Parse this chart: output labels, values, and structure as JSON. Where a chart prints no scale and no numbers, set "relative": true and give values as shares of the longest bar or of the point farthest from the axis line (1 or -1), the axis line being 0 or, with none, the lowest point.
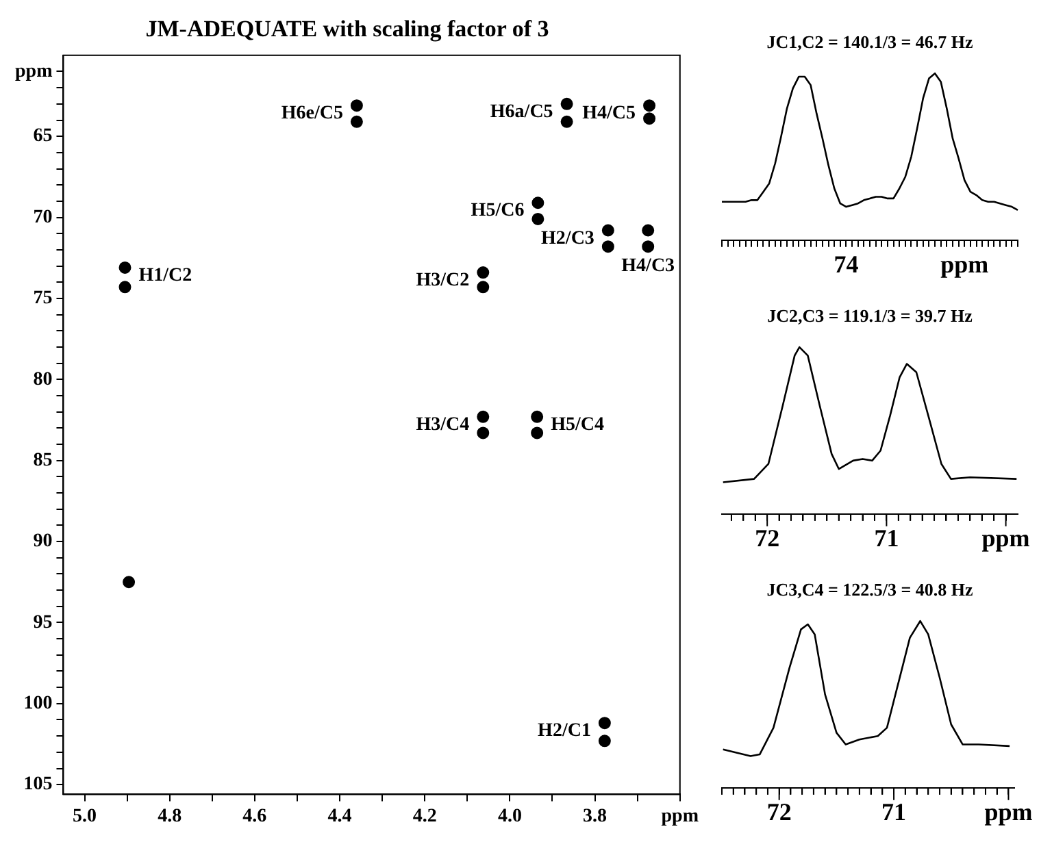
{
  "chart_data": [
    {
      "type": "scatter",
      "title": "JM-ADEQUATE with scaling factor of 3",
      "x": [
        4.905,
        4.905,
        4.36,
        4.36,
        3.866,
        3.866,
        3.672,
        3.672,
        3.934,
        3.934,
        3.769,
        3.769,
        3.675,
        3.675,
        4.063,
        4.063,
        4.063,
        4.063,
        3.936,
        3.936,
        3.777,
        3.777,
        4.896
      ],
      "values": [
        73.1,
        74.3,
        63.1,
        64.1,
        63.0,
        64.1,
        63.1,
        63.9,
        69.1,
        70.1,
        70.8,
        71.8,
        70.8,
        71.8,
        73.4,
        74.3,
        82.3,
        83.3,
        82.3,
        83.3,
        101.2,
        102.3,
        92.5
      ],
      "color": "#000000",
      "marker": "circle",
      "xlim": [
        5.05,
        3.6
      ],
      "xticks": [
        {
          "value": 5,
          "label": "5.0"
        },
        {
          "value": 4.9,
          "label": null
        },
        {
          "value": 4.8,
          "label": "4.8"
        },
        {
          "value": 4.7,
          "label": null
        },
        {
          "value": 4.6,
          "label": "4.6"
        },
        {
          "value": 4.5,
          "label": null
        },
        {
          "value": 4.4,
          "label": "4.4"
        },
        {
          "value": 4.3,
          "label": null
        },
        {
          "value": 4.2,
          "label": "4.2"
        },
        {
          "value": 4.1,
          "label": null
        },
        {
          "value": 4,
          "label": "4.0"
        },
        {
          "value": 3.9,
          "label": null
        },
        {
          "value": 3.8,
          "label": "3.8"
        },
        {
          "value": 3.7,
          "label": null
        },
        {
          "value": 3.6,
          "label": "ppm"
        }
      ],
      "ylim": [
        105.6,
        60
      ],
      "yticks": [
        {
          "value": 61,
          "label": "ppm"
        },
        {
          "value": 62,
          "label": null
        },
        {
          "value": 63,
          "label": null
        },
        {
          "value": 64,
          "label": null
        },
        65,
        {
          "value": 66,
          "label": null
        },
        {
          "value": 67,
          "label": null
        },
        {
          "value": 68,
          "label": null
        },
        {
          "value": 69,
          "label": null
        },
        70,
        {
          "value": 71,
          "label": null
        },
        {
          "value": 72,
          "label": null
        },
        {
          "value": 73,
          "label": null
        },
        {
          "value": 74,
          "label": null
        },
        75,
        {
          "value": 76,
          "label": null
        },
        {
          "value": 77,
          "label": null
        },
        {
          "value": 78,
          "label": null
        },
        {
          "value": 79,
          "label": null
        },
        80,
        {
          "value": 81,
          "label": null
        },
        {
          "value": 82,
          "label": null
        },
        {
          "value": 83,
          "label": null
        },
        {
          "value": 84,
          "label": null
        },
        85,
        {
          "value": 86,
          "label": null
        },
        {
          "value": 87,
          "label": null
        },
        {
          "value": 88,
          "label": null
        },
        {
          "value": 89,
          "label": null
        },
        90,
        {
          "value": 91,
          "label": null
        },
        {
          "value": 92,
          "label": null
        },
        {
          "value": 93,
          "label": null
        },
        {
          "value": 94,
          "label": null
        },
        95,
        {
          "value": 96,
          "label": null
        },
        {
          "value": 97,
          "label": null
        },
        {
          "value": 98,
          "label": null
        },
        {
          "value": 99,
          "label": null
        },
        100,
        {
          "value": 101,
          "label": null
        },
        {
          "value": 102,
          "label": null
        },
        {
          "value": 103,
          "label": null
        },
        {
          "value": 104,
          "label": null
        },
        105
      ],
      "annotations": [
        {
          "text": "H1/C2",
          "x": 4.905,
          "y": 73.1
        },
        {
          "text": "H6e/C5",
          "x": 4.36,
          "y": 63.1
        },
        {
          "text": "H3/C2",
          "x": 4.063,
          "y": 73.4
        },
        {
          "text": "H3/C4",
          "x": 4.063,
          "y": 82.3
        },
        {
          "text": "H6a/C5",
          "x": 3.866,
          "y": 63.0
        },
        {
          "text": "H4/C5",
          "x": 3.672,
          "y": 63.1
        },
        {
          "text": "H2/C3",
          "x": 3.769,
          "y": 70.8
        },
        {
          "text": "H5/C6",
          "x": 3.934,
          "y": 69.1
        },
        {
          "text": "H4/C3",
          "x": 3.675,
          "y": 70.8
        },
        {
          "text": "H5/C4",
          "x": 3.936,
          "y": 82.3
        },
        {
          "text": "H2/C1",
          "x": 3.777,
          "y": 101.2
        }
      ]
    },
    {
      "type": "line",
      "title": "JC1,C2 = 140.1/3 = 46.7 Hz",
      "relative": true,
      "color": "#000000",
      "marker": "none",
      "categories": [
        null,
        null,
        null,
        null,
        null,
        null,
        null,
        null,
        null,
        null,
        null,
        null,
        null,
        null,
        null,
        null,
        null,
        null,
        null,
        null,
        null,
        "74",
        null,
        null,
        null,
        null,
        null,
        null,
        null,
        null,
        null,
        null,
        null,
        null,
        null,
        null,
        null,
        null,
        null,
        null,
        null,
        "ppm",
        null,
        null,
        null,
        null,
        null,
        null,
        null,
        null,
        null
      ],
      "values": [
        0.23,
        0.23,
        0.23,
        0.23,
        0.23,
        0.24,
        0.24,
        0.29,
        0.34,
        0.46,
        0.62,
        0.79,
        0.91,
        0.98,
        0.98,
        0.93,
        0.76,
        0.61,
        0.45,
        0.31,
        0.22,
        0.2,
        0.21,
        0.22,
        0.24,
        0.25,
        0.26,
        0.26,
        0.25,
        0.25,
        0.31,
        0.38,
        0.5,
        0.67,
        0.85,
        0.97,
        1.0,
        0.95,
        0.79,
        0.61,
        0.49,
        0.36,
        0.29,
        0.27,
        0.24,
        0.23,
        0.23,
        0.22,
        0.21,
        0.2,
        0.18
      ]
    },
    {
      "type": "line",
      "title": "JC2,C3 = 119.1/3 = 39.7 Hz",
      "relative": true,
      "color": "#000000",
      "marker": "none",
      "x": [
        72.37,
        72.11,
        71.99,
        71.87,
        71.77,
        71.73,
        71.66,
        71.56,
        71.46,
        71.4,
        71.28,
        71.2,
        71.12,
        71.05,
        70.97,
        70.89,
        70.83,
        70.75,
        70.65,
        70.54,
        70.46,
        70.3,
        69.91
      ],
      "values": [
        0.19,
        0.21,
        0.3,
        0.65,
        0.95,
        1.0,
        0.95,
        0.65,
        0.36,
        0.27,
        0.32,
        0.33,
        0.32,
        0.38,
        0.59,
        0.82,
        0.9,
        0.85,
        0.59,
        0.3,
        0.21,
        0.22,
        0.21
      ],
      "xlim": [
        72.38,
        69.9
      ],
      "xticks": [
        {
          "value": 72.3,
          "label": null
        },
        {
          "value": 72.2,
          "label": null
        },
        {
          "value": 72.1,
          "label": null
        },
        {
          "value": 72,
          "label": "72"
        },
        {
          "value": 71.9,
          "label": null
        },
        {
          "value": 71.8,
          "label": null
        },
        {
          "value": 71.7,
          "label": null
        },
        {
          "value": 71.6,
          "label": null
        },
        {
          "value": 71.5,
          "label": null
        },
        {
          "value": 71.4,
          "label": null
        },
        {
          "value": 71.3,
          "label": null
        },
        {
          "value": 71.2,
          "label": null
        },
        {
          "value": 71.1,
          "label": null
        },
        {
          "value": 71,
          "label": "71"
        },
        {
          "value": 70.9,
          "label": null
        },
        {
          "value": 70.8,
          "label": null
        },
        {
          "value": 70.7,
          "label": null
        },
        {
          "value": 70.6,
          "label": null
        },
        {
          "value": 70.5,
          "label": null
        },
        {
          "value": 70.4,
          "label": null
        },
        {
          "value": 70.3,
          "label": null
        },
        {
          "value": 70.2,
          "label": null
        },
        {
          "value": 70.1,
          "label": null
        },
        {
          "value": 70,
          "label": "ppm"
        }
      ]
    },
    {
      "type": "line",
      "title": "JC3,C4 = 122.5/3 = 40.8 Hz",
      "relative": true,
      "color": "#000000",
      "marker": "none",
      "x": [
        72.49,
        72.25,
        72.17,
        72.05,
        71.91,
        71.81,
        71.75,
        71.69,
        71.6,
        71.5,
        71.42,
        71.3,
        71.14,
        71.06,
        70.96,
        70.86,
        70.77,
        70.7,
        70.6,
        70.5,
        70.4,
        70.26,
        69.99
      ],
      "values": [
        0.23,
        0.19,
        0.2,
        0.36,
        0.72,
        0.95,
        0.98,
        0.92,
        0.56,
        0.33,
        0.26,
        0.29,
        0.31,
        0.36,
        0.63,
        0.9,
        1.0,
        0.92,
        0.66,
        0.38,
        0.26,
        0.26,
        0.25
      ],
      "xlim": [
        72.5,
        69.95
      ],
      "xticks": [
        {
          "value": 72.5,
          "label": null
        },
        {
          "value": 72.4,
          "label": null
        },
        {
          "value": 72.3,
          "label": null
        },
        {
          "value": 72.2,
          "label": null
        },
        {
          "value": 72.1,
          "label": null
        },
        {
          "value": 72,
          "label": "72"
        },
        {
          "value": 71.9,
          "label": null
        },
        {
          "value": 71.8,
          "label": null
        },
        {
          "value": 71.7,
          "label": null
        },
        {
          "value": 71.6,
          "label": null
        },
        {
          "value": 71.5,
          "label": null
        },
        {
          "value": 71.4,
          "label": null
        },
        {
          "value": 71.3,
          "label": null
        },
        {
          "value": 71.2,
          "label": null
        },
        {
          "value": 71.1,
          "label": null
        },
        {
          "value": 71,
          "label": "71"
        },
        {
          "value": 70.9,
          "label": null
        },
        {
          "value": 70.8,
          "label": null
        },
        {
          "value": 70.7,
          "label": null
        },
        {
          "value": 70.6,
          "label": null
        },
        {
          "value": 70.5,
          "label": null
        },
        {
          "value": 70.4,
          "label": null
        },
        {
          "value": 70.3,
          "label": null
        },
        {
          "value": 70.2,
          "label": null
        },
        {
          "value": 70.1,
          "label": null
        },
        {
          "value": 70,
          "label": "ppm"
        }
      ]
    }
  ]
}
